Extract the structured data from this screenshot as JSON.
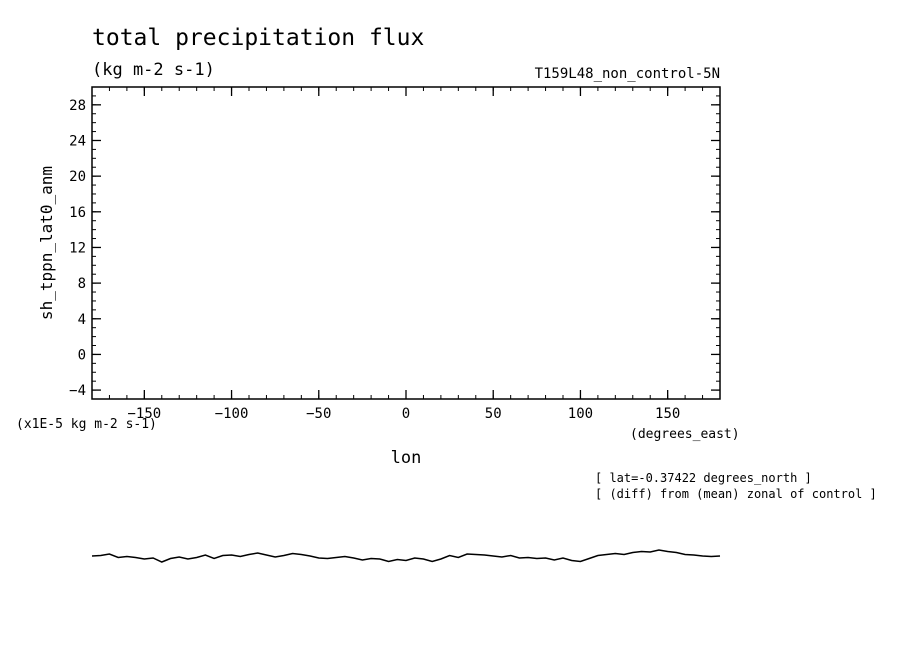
{
  "chart_data": {
    "type": "line",
    "title": "total precipitation flux",
    "units": "(kg m-2 s-1)",
    "run_label": "T159L48_non_control-5N",
    "xlabel": "lon",
    "x_units": "(degrees_east)",
    "ylabel": "sh_tppn_lat0_anm",
    "y_scale_label": "(x1E-5 kg m-2 s-1)",
    "xlim": [
      -180,
      180
    ],
    "ylim": [
      -5,
      30
    ],
    "x_ticks": [
      -150,
      -100,
      -50,
      0,
      50,
      100,
      150
    ],
    "y_ticks": [
      -4,
      0,
      4,
      8,
      12,
      16,
      20,
      24,
      28
    ],
    "annotations": [
      "[ lat=-0.37422 degrees_north ]",
      "[ (diff) from (mean) zonal of control ]"
    ],
    "grid": false,
    "series": [
      {
        "x": [
          -180,
          -175,
          -170,
          -165,
          -160,
          -155,
          -150,
          -145,
          -140,
          -135,
          -130,
          -125,
          -120,
          -115,
          -110,
          -105,
          -100,
          -95,
          -90,
          -85,
          -80,
          -75,
          -70,
          -65,
          -60,
          -55,
          -50,
          -45,
          -40,
          -35,
          -30,
          -25,
          -20,
          -15,
          -10,
          -5,
          0,
          5,
          10,
          15,
          20,
          25,
          30,
          35,
          40,
          45,
          50,
          55,
          60,
          65,
          70,
          75,
          80,
          85,
          90,
          95,
          100,
          105,
          110,
          115,
          120,
          125,
          130,
          135,
          140,
          145,
          150,
          155,
          160,
          165,
          170,
          175,
          180
        ],
        "values": [
          0.0,
          0.1,
          0.4,
          -0.3,
          -0.1,
          -0.3,
          -0.6,
          -0.4,
          -1.2,
          -0.5,
          -0.2,
          -0.6,
          -0.3,
          0.2,
          -0.5,
          0.1,
          0.2,
          -0.1,
          0.3,
          0.6,
          0.2,
          -0.2,
          0.1,
          0.5,
          0.3,
          0.0,
          -0.4,
          -0.5,
          -0.3,
          -0.1,
          -0.4,
          -0.8,
          -0.5,
          -0.6,
          -1.1,
          -0.7,
          -0.9,
          -0.4,
          -0.6,
          -1.1,
          -0.6,
          0.1,
          -0.3,
          0.4,
          0.3,
          0.2,
          0.0,
          -0.2,
          0.1,
          -0.4,
          -0.3,
          -0.5,
          -0.4,
          -0.8,
          -0.4,
          -0.9,
          -1.1,
          -0.5,
          0.1,
          0.3,
          0.5,
          0.3,
          0.7,
          0.9,
          0.8,
          1.2,
          0.9,
          0.7,
          0.3,
          0.2,
          0.0,
          -0.1,
          0.0
        ]
      }
    ]
  }
}
